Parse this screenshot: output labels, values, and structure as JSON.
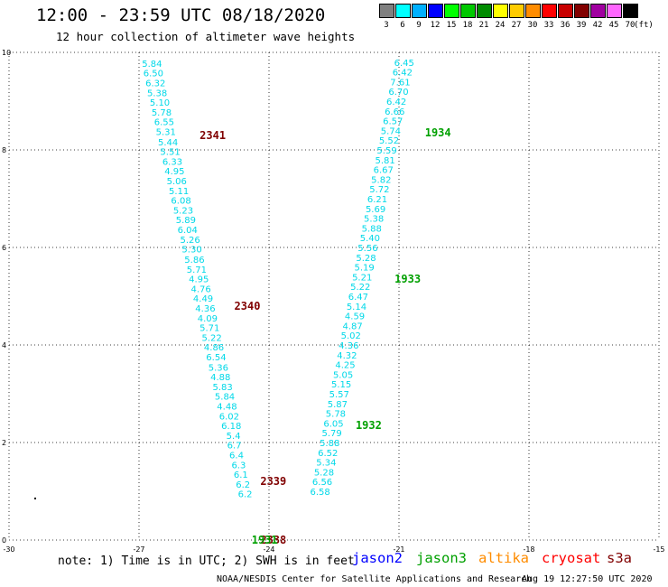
{
  "header": {
    "title": "12:00 - 23:59 UTC 08/18/2020",
    "subtitle": "12 hour collection of altimeter wave heights"
  },
  "legend": {
    "unit": "(ft)",
    "bins": [
      {
        "label": "3",
        "color": "#808080"
      },
      {
        "label": "6",
        "color": "#00ffff"
      },
      {
        "label": "9",
        "color": "#00b0ff"
      },
      {
        "label": "12",
        "color": "#0000ff"
      },
      {
        "label": "15",
        "color": "#00ff00"
      },
      {
        "label": "18",
        "color": "#00c800"
      },
      {
        "label": "21",
        "color": "#008c00"
      },
      {
        "label": "24",
        "color": "#ffff00"
      },
      {
        "label": "27",
        "color": "#ffcc00"
      },
      {
        "label": "30",
        "color": "#ff8c00"
      },
      {
        "label": "33",
        "color": "#ff0000"
      },
      {
        "label": "36",
        "color": "#c80000"
      },
      {
        "label": "39",
        "color": "#820000"
      },
      {
        "label": "42",
        "color": "#a000a0"
      },
      {
        "label": "45",
        "color": "#ff66ff"
      },
      {
        "label": "70",
        "color": "#000000"
      }
    ]
  },
  "footer": {
    "note": "note: 1) Time is in UTC; 2) SWH is in feet",
    "satellites": [
      {
        "name": "jason2",
        "color": "#0000ff"
      },
      {
        "name": "jason3",
        "color": "#00a000"
      },
      {
        "name": "altika",
        "color": "#ff8c00"
      },
      {
        "name": "cryosat",
        "color": "#ff0000"
      },
      {
        "name": "s3a",
        "color": "#800000"
      }
    ],
    "credit": "NOAA/NESDIS Center for Satellite Applications and Research",
    "timestamp": "Aug 19 12:27:50 UTC 2020"
  },
  "chart_data": {
    "type": "scatter",
    "xlim": [
      -30,
      -15
    ],
    "ylim": [
      0,
      10
    ],
    "x_ticks": [
      "-30",
      "-27",
      "-24",
      "-21",
      "-18",
      "-15"
    ],
    "y_ticks": [
      "0",
      "2",
      "4",
      "6",
      "8",
      "10"
    ],
    "grid": true,
    "value_color": "#00d8e8",
    "series": [
      {
        "points": [
          {
            "x": -26.7,
            "y": 9.78,
            "v": "5.84"
          },
          {
            "x": -26.67,
            "y": 9.58,
            "v": "6.50"
          },
          {
            "x": -26.62,
            "y": 9.38,
            "v": "6.32"
          },
          {
            "x": -26.58,
            "y": 9.18,
            "v": "5.38"
          },
          {
            "x": -26.52,
            "y": 8.98,
            "v": "5.10"
          },
          {
            "x": -26.48,
            "y": 8.78,
            "v": "5.78"
          },
          {
            "x": -26.42,
            "y": 8.58,
            "v": "6.55"
          },
          {
            "x": -26.38,
            "y": 8.38,
            "v": "5.31"
          },
          {
            "x": -26.33,
            "y": 8.17,
            "v": "5.44"
          },
          {
            "x": -26.28,
            "y": 7.97,
            "v": "5.51"
          },
          {
            "x": -26.23,
            "y": 7.77,
            "v": "6.33"
          },
          {
            "x": -26.18,
            "y": 7.57,
            "v": "4.95"
          },
          {
            "x": -26.13,
            "y": 7.37,
            "v": "5.06"
          },
          {
            "x": -26.08,
            "y": 7.17,
            "v": "5.11"
          },
          {
            "x": -26.03,
            "y": 6.97,
            "v": "6.08"
          },
          {
            "x": -25.98,
            "y": 6.77,
            "v": "5.23"
          },
          {
            "x": -25.92,
            "y": 6.57,
            "v": "5.89"
          },
          {
            "x": -25.88,
            "y": 6.37,
            "v": "6.04"
          },
          {
            "x": -25.82,
            "y": 6.17,
            "v": "5.26"
          },
          {
            "x": -25.78,
            "y": 5.97,
            "v": "5.30"
          },
          {
            "x": -25.72,
            "y": 5.76,
            "v": "5.86"
          },
          {
            "x": -25.67,
            "y": 5.56,
            "v": "5.71"
          },
          {
            "x": -25.62,
            "y": 5.36,
            "v": "4.95"
          },
          {
            "x": -25.57,
            "y": 5.16,
            "v": "4.76"
          },
          {
            "x": -25.52,
            "y": 4.96,
            "v": "4.49"
          },
          {
            "x": -25.47,
            "y": 4.76,
            "v": "4.36"
          },
          {
            "x": -25.42,
            "y": 4.56,
            "v": "4.09"
          },
          {
            "x": -25.37,
            "y": 4.36,
            "v": "5.71"
          },
          {
            "x": -25.32,
            "y": 4.16,
            "v": "5.22"
          },
          {
            "x": -25.27,
            "y": 3.96,
            "v": "4.86"
          },
          {
            "x": -25.22,
            "y": 3.76,
            "v": "6.54"
          },
          {
            "x": -25.17,
            "y": 3.55,
            "v": "5.36"
          },
          {
            "x": -25.12,
            "y": 3.35,
            "v": "4.88"
          },
          {
            "x": -25.07,
            "y": 3.15,
            "v": "5.83"
          },
          {
            "x": -25.02,
            "y": 2.95,
            "v": "5.84"
          },
          {
            "x": -24.97,
            "y": 2.75,
            "v": "4.48"
          },
          {
            "x": -24.92,
            "y": 2.55,
            "v": "6.02"
          },
          {
            "x": -24.87,
            "y": 2.35,
            "v": "6.18"
          },
          {
            "x": -24.82,
            "y": 2.15,
            "v": "5.4"
          },
          {
            "x": -24.8,
            "y": 1.95,
            "v": "6.7"
          },
          {
            "x": -24.75,
            "y": 1.75,
            "v": "6.4"
          },
          {
            "x": -24.7,
            "y": 1.55,
            "v": "6.3"
          },
          {
            "x": -24.65,
            "y": 1.35,
            "v": "6.1"
          },
          {
            "x": -24.6,
            "y": 1.15,
            "v": "6.2"
          },
          {
            "x": -24.55,
            "y": 0.95,
            "v": "6.2"
          }
        ]
      },
      {
        "points": [
          {
            "x": -20.88,
            "y": 9.8,
            "v": "6.45"
          },
          {
            "x": -20.92,
            "y": 9.6,
            "v": "6.42"
          },
          {
            "x": -20.97,
            "y": 9.4,
            "v": "7.61"
          },
          {
            "x": -21.01,
            "y": 9.2,
            "v": "6.70"
          },
          {
            "x": -21.06,
            "y": 9.0,
            "v": "6.42"
          },
          {
            "x": -21.1,
            "y": 8.8,
            "v": "6.66"
          },
          {
            "x": -21.14,
            "y": 8.6,
            "v": "6.57"
          },
          {
            "x": -21.19,
            "y": 8.4,
            "v": "5.74"
          },
          {
            "x": -21.23,
            "y": 8.2,
            "v": "5.52"
          },
          {
            "x": -21.28,
            "y": 8.0,
            "v": "5.59"
          },
          {
            "x": -21.32,
            "y": 7.8,
            "v": "5.81"
          },
          {
            "x": -21.36,
            "y": 7.6,
            "v": "6.67"
          },
          {
            "x": -21.41,
            "y": 7.4,
            "v": "5.82"
          },
          {
            "x": -21.45,
            "y": 7.2,
            "v": "5.72"
          },
          {
            "x": -21.5,
            "y": 7.0,
            "v": "6.21"
          },
          {
            "x": -21.54,
            "y": 6.8,
            "v": "5.69"
          },
          {
            "x": -21.58,
            "y": 6.6,
            "v": "5.38"
          },
          {
            "x": -21.63,
            "y": 6.4,
            "v": "5.88"
          },
          {
            "x": -21.67,
            "y": 6.2,
            "v": "5.40"
          },
          {
            "x": -21.72,
            "y": 6.0,
            "v": "5.56"
          },
          {
            "x": -21.76,
            "y": 5.8,
            "v": "5.28"
          },
          {
            "x": -21.8,
            "y": 5.6,
            "v": "5.19"
          },
          {
            "x": -21.85,
            "y": 5.4,
            "v": "5.21"
          },
          {
            "x": -21.89,
            "y": 5.2,
            "v": "5.22"
          },
          {
            "x": -21.94,
            "y": 5.0,
            "v": "6.47"
          },
          {
            "x": -21.98,
            "y": 4.8,
            "v": "5.14"
          },
          {
            "x": -22.02,
            "y": 4.6,
            "v": "4.59"
          },
          {
            "x": -22.07,
            "y": 4.4,
            "v": "4.87"
          },
          {
            "x": -22.11,
            "y": 4.2,
            "v": "5.02"
          },
          {
            "x": -22.16,
            "y": 4.0,
            "v": "4.36"
          },
          {
            "x": -22.2,
            "y": 3.8,
            "v": "4.32"
          },
          {
            "x": -22.24,
            "y": 3.6,
            "v": "4.25"
          },
          {
            "x": -22.29,
            "y": 3.4,
            "v": "5.05"
          },
          {
            "x": -22.33,
            "y": 3.2,
            "v": "5.15"
          },
          {
            "x": -22.38,
            "y": 3.0,
            "v": "5.57"
          },
          {
            "x": -22.42,
            "y": 2.8,
            "v": "5.87"
          },
          {
            "x": -22.46,
            "y": 2.6,
            "v": "5.78"
          },
          {
            "x": -22.51,
            "y": 2.4,
            "v": "6.05"
          },
          {
            "x": -22.55,
            "y": 2.2,
            "v": "5.79"
          },
          {
            "x": -22.6,
            "y": 2.0,
            "v": "5.88"
          },
          {
            "x": -22.64,
            "y": 1.8,
            "v": "6.52"
          },
          {
            "x": -22.68,
            "y": 1.6,
            "v": "5.34"
          },
          {
            "x": -22.73,
            "y": 1.4,
            "v": "5.28"
          },
          {
            "x": -22.77,
            "y": 1.2,
            "v": "6.56"
          },
          {
            "x": -22.82,
            "y": 1.0,
            "v": "6.58"
          }
        ]
      }
    ],
    "time_labels": [
      {
        "x": -25.3,
        "y": 8.3,
        "text": "2341",
        "color": "#800000"
      },
      {
        "x": -24.5,
        "y": 4.8,
        "text": "2340",
        "color": "#800000"
      },
      {
        "x": -23.9,
        "y": 1.2,
        "text": "2339",
        "color": "#800000"
      },
      {
        "x": -23.9,
        "y": 0.0,
        "text": "2338",
        "color": "#800000"
      },
      {
        "x": -20.1,
        "y": 8.35,
        "text": "1934",
        "color": "#00a000"
      },
      {
        "x": -20.8,
        "y": 5.35,
        "text": "1933",
        "color": "#00a000"
      },
      {
        "x": -21.7,
        "y": 2.35,
        "text": "1932",
        "color": "#00a000"
      },
      {
        "x": -24.1,
        "y": 0.0,
        "text": "1931",
        "color": "#00a000"
      }
    ]
  }
}
